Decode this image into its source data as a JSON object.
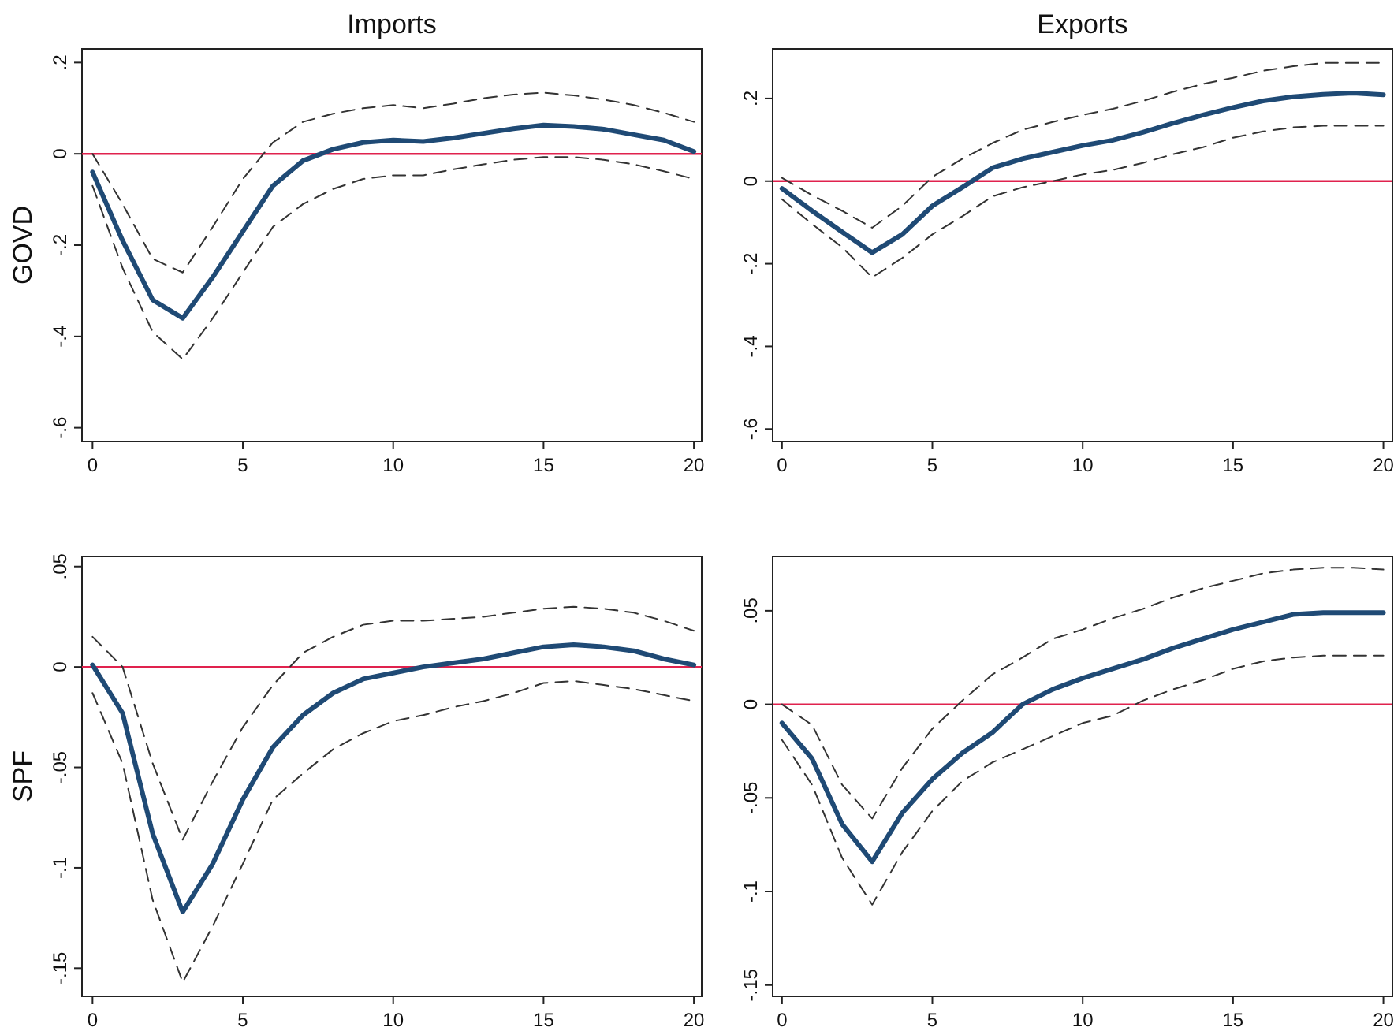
{
  "chart_data": [
    {
      "type": "line",
      "title": "Imports",
      "ylabel": "GOVD",
      "x": [
        0,
        1,
        2,
        3,
        4,
        5,
        6,
        7,
        8,
        9,
        10,
        11,
        12,
        13,
        14,
        15,
        16,
        17,
        18,
        19,
        20
      ],
      "xlim": [
        -0.35,
        20.26
      ],
      "xticks": [
        0,
        5,
        10,
        15,
        20
      ],
      "ylim": [
        -0.63,
        0.23
      ],
      "yticks": [
        {
          "value": -0.6,
          "label": "-.6"
        },
        {
          "value": -0.4,
          "label": "-.4"
        },
        {
          "value": -0.2,
          "label": "-.2"
        },
        {
          "value": 0,
          "label": "0"
        },
        {
          "value": 0.2,
          "label": ".2"
        }
      ],
      "grid": false,
      "line_style": "solid",
      "ref_lines": [
        {
          "axis": "y",
          "value": 0,
          "color": "#e0224e"
        }
      ],
      "series": [
        {
          "color": "#1f4a75",
          "values": [
            -0.04,
            -0.19,
            -0.32,
            -0.36,
            -0.27,
            -0.17,
            -0.07,
            -0.015,
            0.01,
            0.025,
            0.03,
            0.027,
            0.035,
            0.045,
            0.055,
            0.063,
            0.06,
            0.054,
            0.042,
            0.03,
            0.005
          ]
        },
        {
          "color": "#333333",
          "line_style": "dashed",
          "values": [
            -0.07,
            -0.25,
            -0.39,
            -0.45,
            -0.36,
            -0.26,
            -0.16,
            -0.11,
            -0.077,
            -0.055,
            -0.047,
            -0.047,
            -0.034,
            -0.023,
            -0.013,
            -0.007,
            -0.007,
            -0.013,
            -0.023,
            -0.038,
            -0.055
          ]
        },
        {
          "color": "#333333",
          "line_style": "dashed",
          "values": [
            0.0,
            -0.11,
            -0.23,
            -0.26,
            -0.16,
            -0.055,
            0.025,
            0.07,
            0.088,
            0.1,
            0.107,
            0.1,
            0.11,
            0.122,
            0.13,
            0.134,
            0.128,
            0.119,
            0.107,
            0.09,
            0.07
          ]
        }
      ]
    },
    {
      "type": "line",
      "title": "Exports",
      "x": [
        0,
        1,
        2,
        3,
        4,
        5,
        6,
        7,
        8,
        9,
        10,
        11,
        12,
        13,
        14,
        15,
        16,
        17,
        18,
        19,
        20
      ],
      "xlim": [
        -0.31,
        20.3
      ],
      "xticks": [
        0,
        5,
        10,
        15,
        20
      ],
      "ylim": [
        -0.63,
        0.32
      ],
      "yticks": [
        {
          "value": -0.6,
          "label": "-.6"
        },
        {
          "value": -0.4,
          "label": "-.4"
        },
        {
          "value": -0.2,
          "label": "-.2"
        },
        {
          "value": 0,
          "label": "0"
        },
        {
          "value": 0.2,
          "label": ".2"
        }
      ],
      "grid": false,
      "line_style": "solid",
      "ref_lines": [
        {
          "axis": "y",
          "value": 0,
          "color": "#e0224e"
        }
      ],
      "series": [
        {
          "color": "#1f4a75",
          "values": [
            -0.018,
            -0.072,
            -0.123,
            -0.173,
            -0.129,
            -0.06,
            -0.015,
            0.032,
            0.054,
            0.07,
            0.086,
            0.099,
            0.118,
            0.14,
            0.16,
            0.178,
            0.194,
            0.204,
            0.21,
            0.213,
            0.209
          ]
        },
        {
          "color": "#333333",
          "line_style": "dashed",
          "values": [
            -0.044,
            -0.104,
            -0.16,
            -0.233,
            -0.186,
            -0.129,
            -0.085,
            -0.037,
            -0.015,
            0.0,
            0.016,
            0.027,
            0.044,
            0.065,
            0.082,
            0.105,
            0.12,
            0.13,
            0.134,
            0.134,
            0.134
          ]
        },
        {
          "color": "#333333",
          "line_style": "dashed",
          "values": [
            0.008,
            -0.034,
            -0.072,
            -0.113,
            -0.06,
            0.01,
            0.054,
            0.092,
            0.124,
            0.143,
            0.16,
            0.175,
            0.194,
            0.216,
            0.235,
            0.25,
            0.267,
            0.278,
            0.286,
            0.286,
            0.286
          ]
        }
      ]
    },
    {
      "type": "line",
      "ylabel": "SPF",
      "x": [
        0,
        1,
        2,
        3,
        4,
        5,
        6,
        7,
        8,
        9,
        10,
        11,
        12,
        13,
        14,
        15,
        16,
        17,
        18,
        19,
        20
      ],
      "xlim": [
        -0.35,
        20.26
      ],
      "xticks": [
        0,
        5,
        10,
        15,
        20
      ],
      "ylim": [
        -0.164,
        0.055
      ],
      "yticks": [
        {
          "value": -0.15,
          "label": "-.15"
        },
        {
          "value": -0.1,
          "label": "-.1"
        },
        {
          "value": -0.05,
          "label": "-.05"
        },
        {
          "value": 0,
          "label": "0"
        },
        {
          "value": 0.05,
          "label": ".05"
        }
      ],
      "grid": false,
      "line_style": "solid",
      "ref_lines": [
        {
          "axis": "y",
          "value": 0,
          "color": "#e0224e"
        }
      ],
      "series": [
        {
          "color": "#1f4a75",
          "values": [
            0.001,
            -0.023,
            -0.083,
            -0.122,
            -0.098,
            -0.066,
            -0.04,
            -0.024,
            -0.013,
            -0.006,
            -0.003,
            0.0,
            0.002,
            0.004,
            0.007,
            0.01,
            0.011,
            0.01,
            0.008,
            0.004,
            0.001
          ]
        },
        {
          "color": "#333333",
          "line_style": "dashed",
          "values": [
            -0.013,
            -0.048,
            -0.116,
            -0.157,
            -0.129,
            -0.098,
            -0.066,
            -0.053,
            -0.041,
            -0.033,
            -0.027,
            -0.024,
            -0.02,
            -0.017,
            -0.013,
            -0.008,
            -0.007,
            -0.009,
            -0.011,
            -0.014,
            -0.017
          ]
        },
        {
          "color": "#333333",
          "line_style": "dashed",
          "values": [
            0.015,
            0.0,
            -0.048,
            -0.086,
            -0.057,
            -0.03,
            -0.009,
            0.007,
            0.015,
            0.021,
            0.023,
            0.023,
            0.024,
            0.025,
            0.027,
            0.029,
            0.03,
            0.029,
            0.027,
            0.023,
            0.018
          ]
        }
      ]
    },
    {
      "type": "line",
      "x": [
        0,
        1,
        2,
        3,
        4,
        5,
        6,
        7,
        8,
        9,
        10,
        11,
        12,
        13,
        14,
        15,
        16,
        17,
        18,
        19,
        20
      ],
      "xlim": [
        -0.31,
        20.3
      ],
      "xticks": [
        0,
        5,
        10,
        15,
        20
      ],
      "ylim": [
        -0.156,
        0.079
      ],
      "yticks": [
        {
          "value": -0.15,
          "label": "-.15"
        },
        {
          "value": -0.1,
          "label": "-.1"
        },
        {
          "value": -0.05,
          "label": "-.05"
        },
        {
          "value": 0,
          "label": "0"
        },
        {
          "value": 0.05,
          "label": ".05"
        }
      ],
      "grid": false,
      "line_style": "solid",
      "ref_lines": [
        {
          "axis": "y",
          "value": 0,
          "color": "#e0224e"
        }
      ],
      "series": [
        {
          "color": "#1f4a75",
          "values": [
            -0.01,
            -0.029,
            -0.064,
            -0.084,
            -0.058,
            -0.04,
            -0.026,
            -0.015,
            0.0,
            0.008,
            0.014,
            0.019,
            0.024,
            0.03,
            0.035,
            0.04,
            0.044,
            0.048,
            0.049,
            0.049,
            0.049
          ]
        },
        {
          "color": "#333333",
          "line_style": "dashed",
          "values": [
            -0.019,
            -0.043,
            -0.082,
            -0.107,
            -0.079,
            -0.057,
            -0.041,
            -0.031,
            -0.024,
            -0.017,
            -0.01,
            -0.006,
            0.002,
            0.008,
            0.013,
            0.019,
            0.023,
            0.025,
            0.026,
            0.026,
            0.026
          ]
        },
        {
          "color": "#333333",
          "line_style": "dashed",
          "values": [
            0.0,
            -0.011,
            -0.043,
            -0.061,
            -0.034,
            -0.013,
            0.002,
            0.016,
            0.025,
            0.035,
            0.04,
            0.046,
            0.051,
            0.057,
            0.062,
            0.066,
            0.07,
            0.072,
            0.073,
            0.073,
            0.072
          ]
        }
      ]
    }
  ]
}
